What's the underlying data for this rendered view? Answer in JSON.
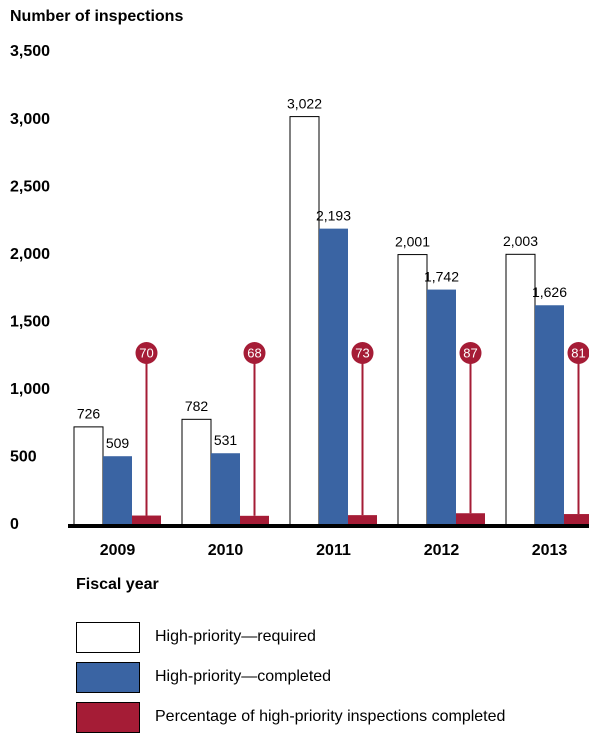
{
  "chart_data": {
    "type": "bar",
    "y_axis_label": "Number of inspections",
    "x_axis_label": "Fiscal year",
    "categories": [
      "2009",
      "2010",
      "2011",
      "2012",
      "2013"
    ],
    "series": [
      {
        "name": "High-priority—required",
        "color": "#ffffff",
        "values": [
          726,
          782,
          3022,
          2001,
          2003
        ],
        "value_labels": [
          "726",
          "782",
          "3,022",
          "2,001",
          "2,003"
        ]
      },
      {
        "name": "High-priority—completed",
        "color": "#3a64a3",
        "values": [
          509,
          531,
          2193,
          1742,
          1626
        ],
        "value_labels": [
          "509",
          "531",
          "2,193",
          "1,742",
          "1,626"
        ]
      },
      {
        "name": "Percentage of high-priority inspections completed",
        "color": "#a51c36",
        "values": [
          70,
          68,
          73,
          87,
          81
        ]
      }
    ],
    "ylim": [
      0,
      3500
    ],
    "yticks": [
      0,
      500,
      {
        "value": 1000,
        "label": "1,000"
      },
      {
        "value": 1500,
        "label": "1,500"
      },
      {
        "value": 2000,
        "label": "2,000"
      },
      {
        "value": 2500,
        "label": "2,500"
      },
      {
        "value": 3000,
        "label": "3,000"
      },
      {
        "value": 3500,
        "label": "3,500"
      }
    ],
    "grid": false
  }
}
